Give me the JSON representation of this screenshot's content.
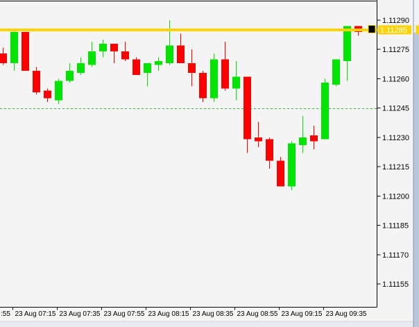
{
  "window": {
    "background": "#F4F4F4",
    "frame": {
      "right_edge_color": "#8495AE",
      "right_top_color": "#EFF2F7",
      "right_body_color": "#B9C7D8",
      "bottom_color": "#E9EDF3",
      "bottom_edge_color": "#CFD6E1"
    }
  },
  "chart_data": {
    "type": "candlestick",
    "timeframe_minutes": 5,
    "colors": {
      "bull": "#00E400",
      "bear": "#FF0000",
      "axis": "#000000",
      "background": "#F4F4F4",
      "text": "#000000"
    },
    "price_axis": {
      "side": "right",
      "max": 1.1129,
      "min": 1.11155,
      "step": 0.00015,
      "labels": [
        "1.11290",
        "1.11275",
        "1.11260",
        "1.11245",
        "1.11230",
        "1.11215",
        "1.11200",
        "1.11185",
        "1.11170",
        "1.11155"
      ]
    },
    "time_axis": {
      "partial_first_label": ":55",
      "labels": [
        "23 Aug 07:15",
        "23 Aug 07:35",
        "23 Aug 07:55",
        "23 Aug 08:15",
        "23 Aug 08:35",
        "23 Aug 08:55",
        "23 Aug 09:15",
        "23 Aug 09:35"
      ]
    },
    "lines": [
      {
        "id": "yellow-resistance-line",
        "price": 1.11285,
        "tag": "1.11285",
        "tag_text_color": "#FFFFFF",
        "color": "#FFD300",
        "style": "solid",
        "width": 4,
        "marker": true
      },
      {
        "id": "green-dashed-level",
        "price": 1.11245,
        "color": "#2FBE2F",
        "style": "dashed",
        "width": 1
      }
    ],
    "candles": [
      {
        "t": "23 Aug 07:10",
        "o": 1.11273,
        "h": 1.11276,
        "l": 1.11267,
        "c": 1.11268
      },
      {
        "t": "23 Aug 07:15",
        "o": 1.11268,
        "h": 1.11285,
        "l": 1.11264,
        "c": 1.11284
      },
      {
        "t": "23 Aug 07:20",
        "o": 1.11284,
        "h": 1.11284,
        "l": 1.11264,
        "c": 1.11264
      },
      {
        "t": "23 Aug 07:25",
        "o": 1.11264,
        "h": 1.11266,
        "l": 1.11252,
        "c": 1.11253
      },
      {
        "t": "23 Aug 07:30",
        "o": 1.11254,
        "h": 1.11255,
        "l": 1.11248,
        "c": 1.1125
      },
      {
        "t": "23 Aug 07:35",
        "o": 1.11249,
        "h": 1.1126,
        "l": 1.11247,
        "c": 1.11259
      },
      {
        "t": "23 Aug 07:40",
        "o": 1.11259,
        "h": 1.11268,
        "l": 1.11258,
        "c": 1.11264
      },
      {
        "t": "23 Aug 07:45",
        "o": 1.11263,
        "h": 1.11271,
        "l": 1.11262,
        "c": 1.11268
      },
      {
        "t": "23 Aug 07:50",
        "o": 1.11267,
        "h": 1.11279,
        "l": 1.11266,
        "c": 1.11274
      },
      {
        "t": "23 Aug 07:55",
        "o": 1.11274,
        "h": 1.1128,
        "l": 1.11271,
        "c": 1.11278
      },
      {
        "t": "23 Aug 08:00",
        "o": 1.11278,
        "h": 1.11278,
        "l": 1.11268,
        "c": 1.11274
      },
      {
        "t": "23 Aug 08:05",
        "o": 1.11274,
        "h": 1.11279,
        "l": 1.11269,
        "c": 1.1127
      },
      {
        "t": "23 Aug 08:10",
        "o": 1.1127,
        "h": 1.11271,
        "l": 1.11262,
        "c": 1.11262
      },
      {
        "t": "23 Aug 08:15",
        "o": 1.11263,
        "h": 1.11268,
        "l": 1.11256,
        "c": 1.11268
      },
      {
        "t": "23 Aug 08:20",
        "o": 1.11267,
        "h": 1.11271,
        "l": 1.11264,
        "c": 1.11269
      },
      {
        "t": "23 Aug 08:25",
        "o": 1.11268,
        "h": 1.1129,
        "l": 1.11267,
        "c": 1.11277
      },
      {
        "t": "23 Aug 08:30",
        "o": 1.11277,
        "h": 1.11283,
        "l": 1.11268,
        "c": 1.11268
      },
      {
        "t": "23 Aug 08:35",
        "o": 1.11268,
        "h": 1.11275,
        "l": 1.11256,
        "c": 1.11263
      },
      {
        "t": "23 Aug 08:40",
        "o": 1.11263,
        "h": 1.11264,
        "l": 1.11248,
        "c": 1.1125
      },
      {
        "t": "23 Aug 08:45",
        "o": 1.1125,
        "h": 1.11273,
        "l": 1.11248,
        "c": 1.1127
      },
      {
        "t": "23 Aug 08:50",
        "o": 1.1127,
        "h": 1.11279,
        "l": 1.11254,
        "c": 1.11255
      },
      {
        "t": "23 Aug 08:55",
        "o": 1.11255,
        "h": 1.11269,
        "l": 1.11249,
        "c": 1.11261
      },
      {
        "t": "23 Aug 09:00",
        "o": 1.11261,
        "h": 1.11261,
        "l": 1.11222,
        "c": 1.11229
      },
      {
        "t": "23 Aug 09:05",
        "o": 1.1123,
        "h": 1.11238,
        "l": 1.11225,
        "c": 1.11228
      },
      {
        "t": "23 Aug 09:10",
        "o": 1.11229,
        "h": 1.1123,
        "l": 1.11214,
        "c": 1.11218
      },
      {
        "t": "23 Aug 09:15",
        "o": 1.11218,
        "h": 1.1122,
        "l": 1.11205,
        "c": 1.11205
      },
      {
        "t": "23 Aug 09:20",
        "o": 1.11205,
        "h": 1.11228,
        "l": 1.11203,
        "c": 1.11227
      },
      {
        "t": "23 Aug 09:25",
        "o": 1.11226,
        "h": 1.11241,
        "l": 1.11222,
        "c": 1.1123
      },
      {
        "t": "23 Aug 09:30",
        "o": 1.11231,
        "h": 1.11236,
        "l": 1.11224,
        "c": 1.11228
      },
      {
        "t": "23 Aug 09:35",
        "o": 1.11229,
        "h": 1.1126,
        "l": 1.11229,
        "c": 1.11258
      },
      {
        "t": "23 Aug 09:40",
        "o": 1.11257,
        "h": 1.1127,
        "l": 1.11256,
        "c": 1.1127
      },
      {
        "t": "23 Aug 09:45",
        "o": 1.11269,
        "h": 1.11287,
        "l": 1.11259,
        "c": 1.11287
      },
      {
        "t": "23 Aug 09:50",
        "o": 1.11287,
        "h": 1.11287,
        "l": 1.11282,
        "c": 1.11284
      }
    ]
  }
}
